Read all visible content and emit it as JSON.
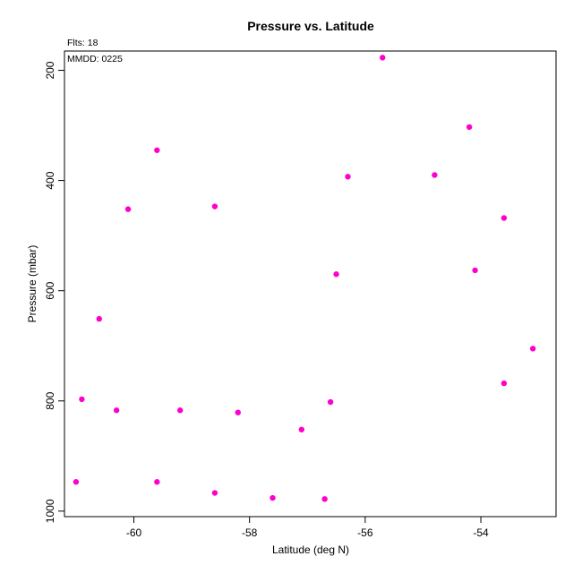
{
  "chart_data": {
    "type": "scatter",
    "title": "Pressure vs. Latitude",
    "xlabel": "Latitude (deg N)",
    "ylabel": "Pressure (mbar)",
    "annotations": {
      "fits": "Flts: 18",
      "date": "MMDD: 0225"
    },
    "xlim": [
      -61.2,
      -52.7
    ],
    "ylim": [
      1010,
      165
    ],
    "y_axis_inverted": true,
    "xticks": [
      -60,
      -58,
      -56,
      -54
    ],
    "yticks": [
      200,
      400,
      600,
      800,
      1000
    ],
    "grid": false,
    "legend": "none",
    "point_color": "#ff00cc",
    "points": [
      {
        "x": -55.7,
        "y": 177
      },
      {
        "x": -54.2,
        "y": 303
      },
      {
        "x": -59.6,
        "y": 345
      },
      {
        "x": -56.3,
        "y": 393
      },
      {
        "x": -54.8,
        "y": 390
      },
      {
        "x": -60.1,
        "y": 452
      },
      {
        "x": -58.6,
        "y": 447
      },
      {
        "x": -53.6,
        "y": 468
      },
      {
        "x": -54.1,
        "y": 563
      },
      {
        "x": -56.5,
        "y": 570
      },
      {
        "x": -60.6,
        "y": 651
      },
      {
        "x": -53.1,
        "y": 705
      },
      {
        "x": -53.6,
        "y": 768
      },
      {
        "x": -60.9,
        "y": 797
      },
      {
        "x": -56.6,
        "y": 802
      },
      {
        "x": -60.3,
        "y": 817
      },
      {
        "x": -59.2,
        "y": 817
      },
      {
        "x": -58.2,
        "y": 821
      },
      {
        "x": -57.1,
        "y": 852
      },
      {
        "x": -61.0,
        "y": 947
      },
      {
        "x": -59.6,
        "y": 947
      },
      {
        "x": -58.6,
        "y": 967
      },
      {
        "x": -57.6,
        "y": 976
      },
      {
        "x": -56.7,
        "y": 978
      }
    ]
  }
}
